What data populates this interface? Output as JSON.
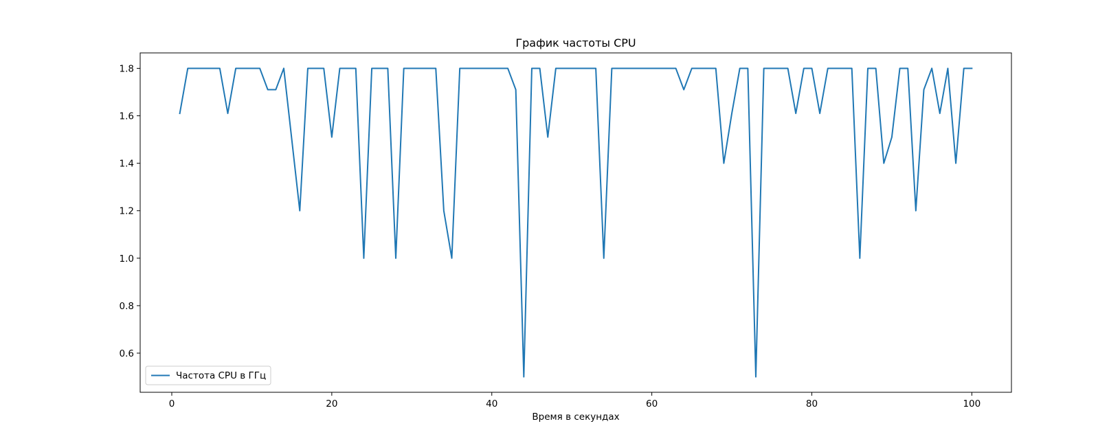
{
  "chart_data": {
    "type": "line",
    "title": "График частоты CPU",
    "xlabel": "Время в секундах",
    "ylabel": "",
    "xlim": [
      -3.95,
      104.95
    ],
    "ylim": [
      0.435,
      1.865
    ],
    "xticks": [
      0,
      20,
      40,
      60,
      80,
      100
    ],
    "yticks": [
      0.6,
      0.8,
      1.0,
      1.2,
      1.4,
      1.6,
      1.8
    ],
    "xtick_labels": [
      "0",
      "20",
      "40",
      "60",
      "80",
      "100"
    ],
    "ytick_labels": [
      "0.6",
      "0.8",
      "1.0",
      "1.2",
      "1.4",
      "1.6",
      "1.8"
    ],
    "legend_position": "lower left",
    "grid": false,
    "series": [
      {
        "name": "Частота CPU в ГГц",
        "color": "#1f77b4",
        "x": [
          1,
          2,
          3,
          4,
          5,
          6,
          7,
          8,
          9,
          10,
          11,
          12,
          13,
          14,
          15,
          16,
          17,
          18,
          19,
          20,
          21,
          22,
          23,
          24,
          25,
          26,
          27,
          28,
          29,
          30,
          31,
          32,
          33,
          34,
          35,
          36,
          37,
          38,
          39,
          40,
          41,
          42,
          43,
          44,
          45,
          46,
          47,
          48,
          49,
          50,
          51,
          52,
          53,
          54,
          55,
          56,
          57,
          58,
          59,
          60,
          61,
          62,
          63,
          64,
          65,
          66,
          67,
          68,
          69,
          70,
          71,
          72,
          73,
          74,
          75,
          76,
          77,
          78,
          79,
          80,
          81,
          82,
          83,
          84,
          85,
          86,
          87,
          88,
          89,
          90,
          91,
          92,
          93,
          94,
          95,
          96,
          97,
          98,
          99,
          100
        ],
        "values": [
          1.61,
          1.8,
          1.8,
          1.8,
          1.8,
          1.8,
          1.61,
          1.8,
          1.8,
          1.8,
          1.8,
          1.71,
          1.71,
          1.8,
          1.5,
          1.2,
          1.8,
          1.8,
          1.8,
          1.51,
          1.8,
          1.8,
          1.8,
          1.0,
          1.8,
          1.8,
          1.8,
          1.0,
          1.8,
          1.8,
          1.8,
          1.8,
          1.8,
          1.2,
          1.0,
          1.8,
          1.8,
          1.8,
          1.8,
          1.8,
          1.8,
          1.8,
          1.71,
          0.5,
          1.8,
          1.8,
          1.51,
          1.8,
          1.8,
          1.8,
          1.8,
          1.8,
          1.8,
          1.0,
          1.8,
          1.8,
          1.8,
          1.8,
          1.8,
          1.8,
          1.8,
          1.8,
          1.8,
          1.71,
          1.8,
          1.8,
          1.8,
          1.8,
          1.4,
          1.61,
          1.8,
          1.8,
          0.5,
          1.8,
          1.8,
          1.8,
          1.8,
          1.61,
          1.8,
          1.8,
          1.61,
          1.8,
          1.8,
          1.8,
          1.8,
          1.0,
          1.8,
          1.8,
          1.4,
          1.51,
          1.8,
          1.8,
          1.2,
          1.71,
          1.8,
          1.61,
          1.8,
          1.4,
          1.8,
          1.8
        ]
      }
    ]
  }
}
